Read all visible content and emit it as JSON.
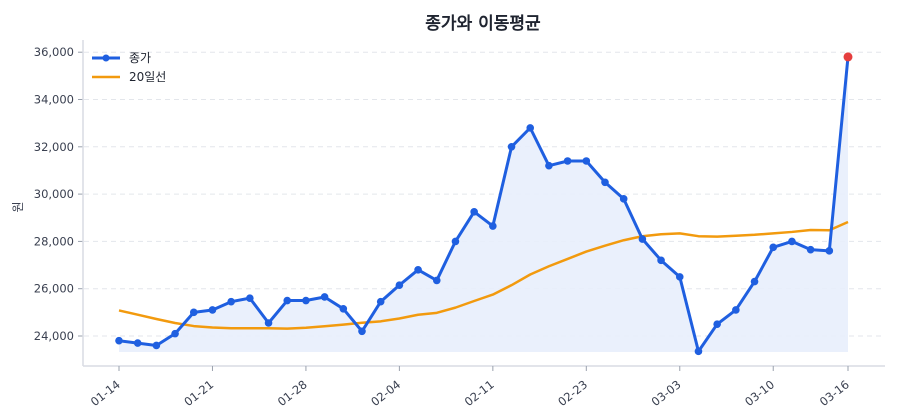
{
  "chart_data": {
    "type": "line",
    "title": "종가와 이동평균",
    "xlabel": "",
    "ylabel": "원",
    "ylim": [
      22800,
      36400
    ],
    "yticks": [
      24000,
      26000,
      28000,
      30000,
      32000,
      34000,
      36000
    ],
    "ytick_labels": [
      "24,000",
      "26,000",
      "28,000",
      "30,000",
      "32,000",
      "34,000",
      "36,000"
    ],
    "xtick_labels": [
      "01-14",
      "01-21",
      "01-28",
      "02-04",
      "02-11",
      "02-23",
      "03-03",
      "03-10",
      "03-16"
    ],
    "xtick_indices": [
      0,
      5,
      10,
      15,
      20,
      25,
      30,
      35,
      39
    ],
    "grid": "horizontal dashed",
    "legend_position": "upper left",
    "highlight": {
      "index": 39,
      "value": 35800,
      "color": "#e53e3e"
    },
    "series": [
      {
        "name": "종가",
        "color": "#1f5fe0",
        "marker": "circle",
        "fill": "#e8eefc",
        "values": [
          23800,
          23700,
          23600,
          24100,
          25000,
          25100,
          25450,
          25600,
          24550,
          25500,
          25500,
          25650,
          25150,
          24200,
          25450,
          26150,
          26800,
          26350,
          28000,
          29250,
          28650,
          32000,
          32800,
          31200,
          31400,
          31400,
          30500,
          29800,
          28100,
          27200,
          26500,
          23350,
          24500,
          25100,
          26300,
          27750,
          28000,
          27650,
          27600,
          35800
        ]
      },
      {
        "name": "20일선",
        "color": "#f29a0e",
        "marker": "none",
        "values": [
          25080,
          24900,
          24720,
          24550,
          24420,
          24360,
          24330,
          24330,
          24330,
          24310,
          24350,
          24410,
          24480,
          24560,
          24620,
          24740,
          24900,
          24980,
          25200,
          25480,
          25750,
          26150,
          26600,
          26950,
          27260,
          27570,
          27820,
          28050,
          28220,
          28300,
          28340,
          28220,
          28200,
          28240,
          28280,
          28340,
          28400,
          28480,
          28470,
          28820
        ]
      }
    ]
  }
}
